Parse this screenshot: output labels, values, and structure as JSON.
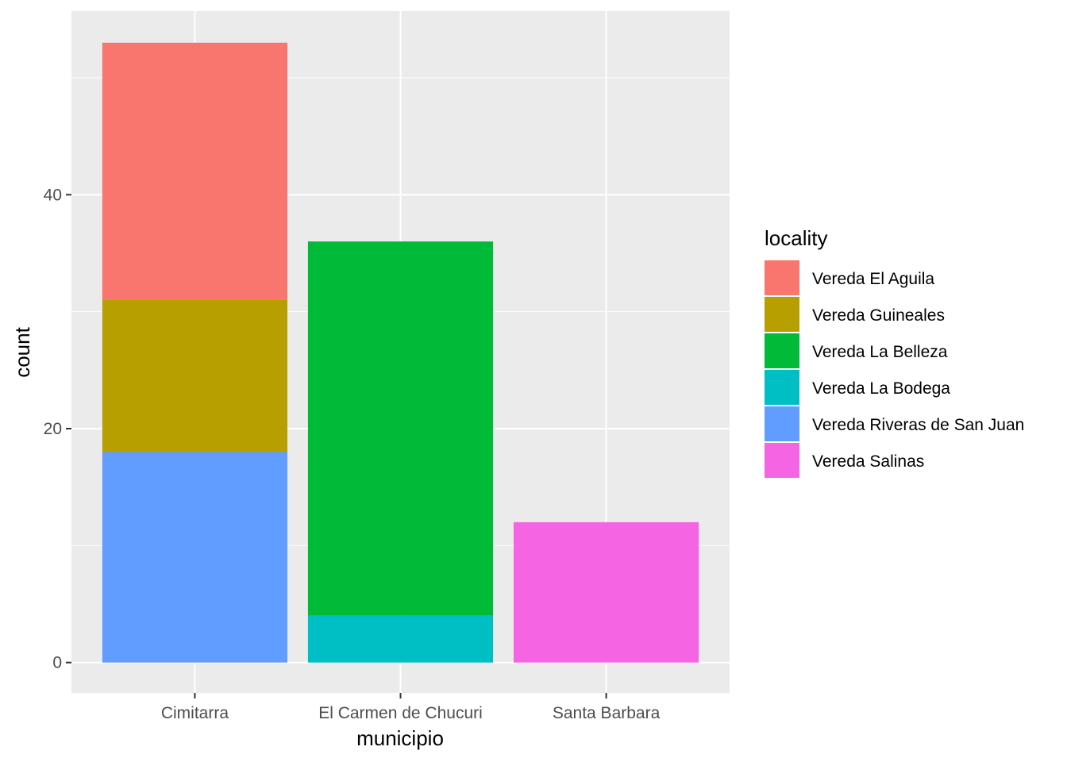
{
  "chart_data": {
    "type": "bar",
    "stacked": true,
    "xlabel": "municipio",
    "ylabel": "count",
    "categories": [
      "Cimitarra",
      "El Carmen de Chucuri",
      "Santa Barbara"
    ],
    "ylim": [
      -2.6,
      55.7
    ],
    "yticks": [
      0,
      20,
      40
    ],
    "grid": true,
    "legend": {
      "title": "locality",
      "placement": "right"
    },
    "series": [
      {
        "name": "Vereda El Aguila",
        "color": "#F8766D",
        "values": [
          22,
          0,
          0
        ]
      },
      {
        "name": "Vereda Guineales",
        "color": "#B79F00",
        "values": [
          13,
          0,
          0
        ]
      },
      {
        "name": "Vereda La Belleza",
        "color": "#00BA38",
        "values": [
          0,
          32,
          0
        ]
      },
      {
        "name": "Vereda La Bodega",
        "color": "#00BFC4",
        "values": [
          0,
          4,
          0
        ]
      },
      {
        "name": "Vereda Riveras de San Juan",
        "color": "#619CFF",
        "values": [
          18,
          0,
          0
        ]
      },
      {
        "name": "Vereda Salinas",
        "color": "#F564E3",
        "values": [
          0,
          0,
          12
        ]
      }
    ]
  }
}
